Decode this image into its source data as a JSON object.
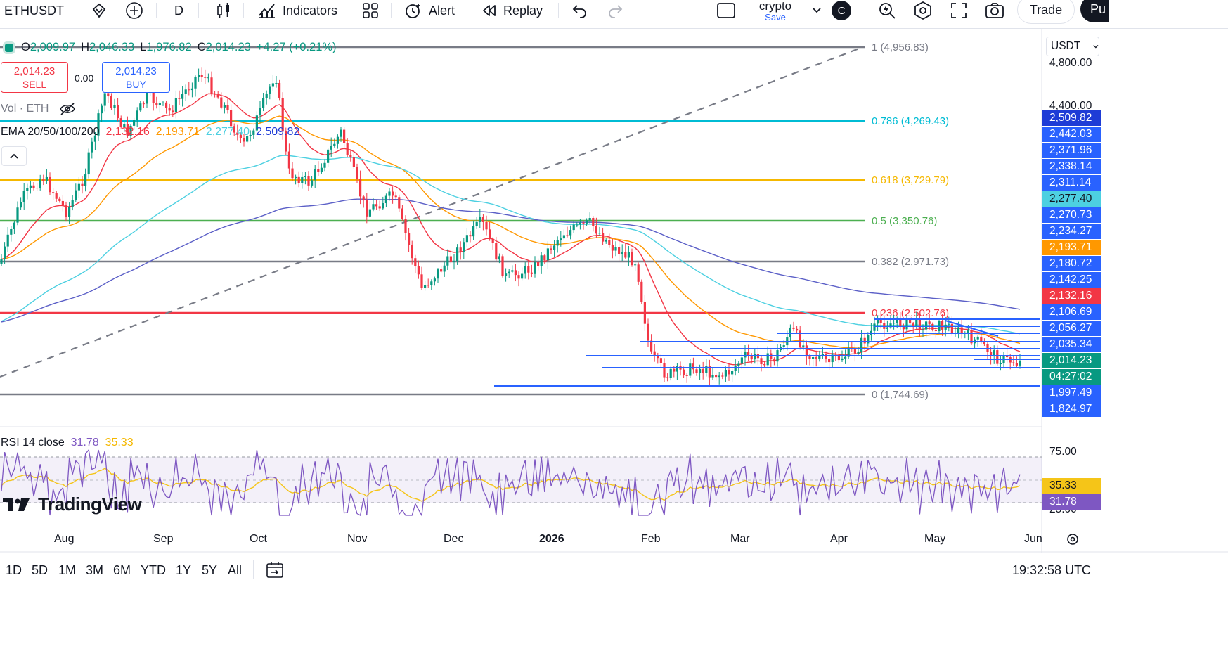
{
  "header": {
    "symbol": "ETHUSDT",
    "interval": "D",
    "indicators_label": "Indicators",
    "alert_label": "Alert",
    "replay_label": "Replay",
    "layout_name": "crypto",
    "save_label": "Save",
    "avatar_letter": "C",
    "trade_label": "Trade",
    "publish_label": "Pu"
  },
  "legend": {
    "ohlc": {
      "o_label": "O",
      "o": "2,009.97",
      "h_label": "H",
      "h": "2,046.33",
      "l_label": "L",
      "l": "1,976.82",
      "c_label": "C",
      "c": "2,014.23",
      "change": "+4.27 (+0.21%)"
    },
    "sell": {
      "price": "2,014.23",
      "label": "SELL"
    },
    "spread": "0.00",
    "buy": {
      "price": "2,014.23",
      "label": "BUY"
    },
    "vol": "Vol · ETH",
    "ema_label": "EMA 20/50/100/200",
    "ema_values": [
      "2,132.16",
      "2,193.71",
      "2,277.40",
      "2,509.82"
    ],
    "rsi_label": "RSI 14 close",
    "rsi_values": [
      "31.78",
      "35.33"
    ]
  },
  "currency": "USDT",
  "fib_levels": [
    {
      "label": "1 (4,956.83)",
      "color": "#787b86"
    },
    {
      "label": "0.786 (4,269.43)",
      "color": "#00bcd4"
    },
    {
      "label": "0.618 (3,729.79)",
      "color": "#f5b800"
    },
    {
      "label": "0.5 (3,350.76)",
      "color": "#4caf50"
    },
    {
      "label": "0.382 (2,971.73)",
      "color": "#787b86"
    },
    {
      "label": "0.236 (2,502.76)",
      "color": "#f23645"
    },
    {
      "label": "0 (1,744.69)",
      "color": "#787b86"
    }
  ],
  "price_axis": {
    "ticks": [
      "4,800.00",
      "4,400.00"
    ],
    "badges": [
      {
        "text": "2,509.82",
        "color": "#1e3cd6"
      },
      {
        "text": "2,442.03",
        "color": "#2962ff"
      },
      {
        "text": "2,371.96",
        "color": "#2962ff"
      },
      {
        "text": "2,338.14",
        "color": "#2962ff"
      },
      {
        "text": "2,311.14",
        "color": "#2962ff"
      },
      {
        "text": "2,277.40",
        "color": "#4dd0e1",
        "dark": true
      },
      {
        "text": "2,270.73",
        "color": "#2962ff"
      },
      {
        "text": "2,234.27",
        "color": "#2962ff"
      },
      {
        "text": "2,193.71",
        "color": "#ff9800"
      },
      {
        "text": "2,180.72",
        "color": "#2962ff"
      },
      {
        "text": "2,142.25",
        "color": "#2962ff"
      },
      {
        "text": "2,132.16",
        "color": "#f23645"
      },
      {
        "text": "2,106.69",
        "color": "#2962ff"
      },
      {
        "text": "2,056.27",
        "color": "#2962ff"
      },
      {
        "text": "2,035.34",
        "color": "#2962ff"
      },
      {
        "text": "2,014.23",
        "color": "#089981"
      },
      {
        "text": "04:27:02",
        "color": "#089981"
      },
      {
        "text": "1,997.49",
        "color": "#2962ff"
      },
      {
        "text": "1,824.97",
        "color": "#2962ff"
      }
    ]
  },
  "rsi_axis": {
    "ticks": [
      "75.00",
      "25.00"
    ],
    "badges": [
      {
        "text": "35.33",
        "color": "#f5c518",
        "dark": true
      },
      {
        "text": "31.78",
        "color": "#7e57c2"
      }
    ]
  },
  "time_axis": [
    "Aug",
    "Sep",
    "Oct",
    "Nov",
    "Dec",
    "2026",
    "Feb",
    "Mar",
    "Apr",
    "May",
    "Jun"
  ],
  "watermark": "TradingView",
  "ranges": [
    "1D",
    "5D",
    "1M",
    "3M",
    "6M",
    "YTD",
    "1Y",
    "5Y",
    "All"
  ],
  "clock": "19:32:58 UTC",
  "colors": {
    "up": "#089981",
    "down": "#f23645",
    "ema20": "#f23645",
    "ema50": "#ff9800",
    "ema100": "#4dd0e1",
    "ema200": "#5b5fc7",
    "rsi": "#7e57c2",
    "rsi_ma": "#f5c518",
    "hline": "#2962ff"
  }
}
